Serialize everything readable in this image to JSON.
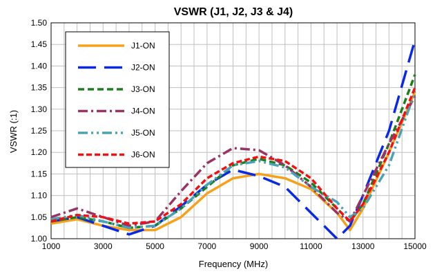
{
  "chart_data": {
    "type": "line",
    "title": "VSWR (J1, J2, J3 & J4)",
    "xlabel": "Frequency (MHz)",
    "ylabel": "VSWR (:1)",
    "xlim": [
      1000,
      15000
    ],
    "ylim": [
      1.0,
      1.5
    ],
    "xticks": [
      1000,
      3000,
      5000,
      7000,
      9000,
      11000,
      13000,
      15000
    ],
    "yticks": [
      1.0,
      1.05,
      1.1,
      1.15,
      1.2,
      1.25,
      1.3,
      1.35,
      1.4,
      1.45,
      1.5
    ],
    "ytick_labels": [
      "1.00",
      "1.05",
      "1.10",
      "1.15",
      "1.20",
      "1.25",
      "1.30",
      "1.35",
      "1.40",
      "1.45",
      "1.50"
    ],
    "grid": true,
    "legend_position": "top-left",
    "series": [
      {
        "name": "J1-ON",
        "color": "#f7a11a",
        "dash": "solid",
        "points": [
          [
            1000,
            1.035
          ],
          [
            2000,
            1.045
          ],
          [
            3000,
            1.03
          ],
          [
            4000,
            1.02
          ],
          [
            5000,
            1.02
          ],
          [
            6000,
            1.05
          ],
          [
            7000,
            1.105
          ],
          [
            8000,
            1.14
          ],
          [
            9000,
            1.15
          ],
          [
            10000,
            1.14
          ],
          [
            11000,
            1.115
          ],
          [
            12000,
            1.06
          ],
          [
            12500,
            1.02
          ],
          [
            13000,
            1.07
          ],
          [
            14000,
            1.2
          ],
          [
            15000,
            1.34
          ]
        ]
      },
      {
        "name": "J2-ON",
        "color": "#0a29e6",
        "dash": "longdash",
        "points": [
          [
            1000,
            1.04
          ],
          [
            2000,
            1.05
          ],
          [
            3000,
            1.03
          ],
          [
            4000,
            1.01
          ],
          [
            5000,
            1.03
          ],
          [
            6000,
            1.075
          ],
          [
            7000,
            1.125
          ],
          [
            8000,
            1.16
          ],
          [
            9000,
            1.145
          ],
          [
            10000,
            1.12
          ],
          [
            11000,
            1.06
          ],
          [
            12000,
            1.0
          ],
          [
            12500,
            1.03
          ],
          [
            13000,
            1.1
          ],
          [
            14000,
            1.25
          ],
          [
            15000,
            1.46
          ]
        ]
      },
      {
        "name": "J3-ON",
        "color": "#1b7f1b",
        "dash": "dash",
        "points": [
          [
            1000,
            1.04
          ],
          [
            2000,
            1.05
          ],
          [
            3000,
            1.04
          ],
          [
            4000,
            1.025
          ],
          [
            5000,
            1.03
          ],
          [
            6000,
            1.07
          ],
          [
            7000,
            1.12
          ],
          [
            8000,
            1.17
          ],
          [
            9000,
            1.185
          ],
          [
            10000,
            1.17
          ],
          [
            11000,
            1.13
          ],
          [
            12000,
            1.07
          ],
          [
            12500,
            1.04
          ],
          [
            13000,
            1.08
          ],
          [
            14000,
            1.22
          ],
          [
            15000,
            1.38
          ]
        ]
      },
      {
        "name": "J4-ON",
        "color": "#993366",
        "dash": "dashdot",
        "points": [
          [
            1000,
            1.05
          ],
          [
            2000,
            1.07
          ],
          [
            3000,
            1.05
          ],
          [
            4000,
            1.03
          ],
          [
            5000,
            1.04
          ],
          [
            6000,
            1.11
          ],
          [
            7000,
            1.175
          ],
          [
            8000,
            1.21
          ],
          [
            9000,
            1.205
          ],
          [
            10000,
            1.17
          ],
          [
            11000,
            1.12
          ],
          [
            12000,
            1.06
          ],
          [
            12500,
            1.04
          ],
          [
            13000,
            1.1
          ],
          [
            14000,
            1.22
          ],
          [
            15000,
            1.33
          ]
        ]
      },
      {
        "name": "J5-ON",
        "color": "#4aa3b5",
        "dash": "dashdotdot",
        "points": [
          [
            1000,
            1.045
          ],
          [
            2000,
            1.055
          ],
          [
            3000,
            1.04
          ],
          [
            4000,
            1.025
          ],
          [
            5000,
            1.03
          ],
          [
            6000,
            1.07
          ],
          [
            7000,
            1.125
          ],
          [
            8000,
            1.17
          ],
          [
            9000,
            1.18
          ],
          [
            10000,
            1.165
          ],
          [
            11000,
            1.12
          ],
          [
            12000,
            1.085
          ],
          [
            12500,
            1.05
          ],
          [
            13000,
            1.07
          ],
          [
            14000,
            1.17
          ],
          [
            15000,
            1.34
          ]
        ]
      },
      {
        "name": "J6-ON",
        "color": "#f01212",
        "dash": "shortdash",
        "points": [
          [
            1000,
            1.04
          ],
          [
            2000,
            1.055
          ],
          [
            3000,
            1.05
          ],
          [
            4000,
            1.035
          ],
          [
            5000,
            1.04
          ],
          [
            6000,
            1.08
          ],
          [
            7000,
            1.14
          ],
          [
            8000,
            1.175
          ],
          [
            9000,
            1.19
          ],
          [
            10000,
            1.18
          ],
          [
            11000,
            1.14
          ],
          [
            12000,
            1.07
          ],
          [
            12500,
            1.04
          ],
          [
            13000,
            1.08
          ],
          [
            14000,
            1.2
          ],
          [
            15000,
            1.35
          ]
        ]
      }
    ]
  }
}
